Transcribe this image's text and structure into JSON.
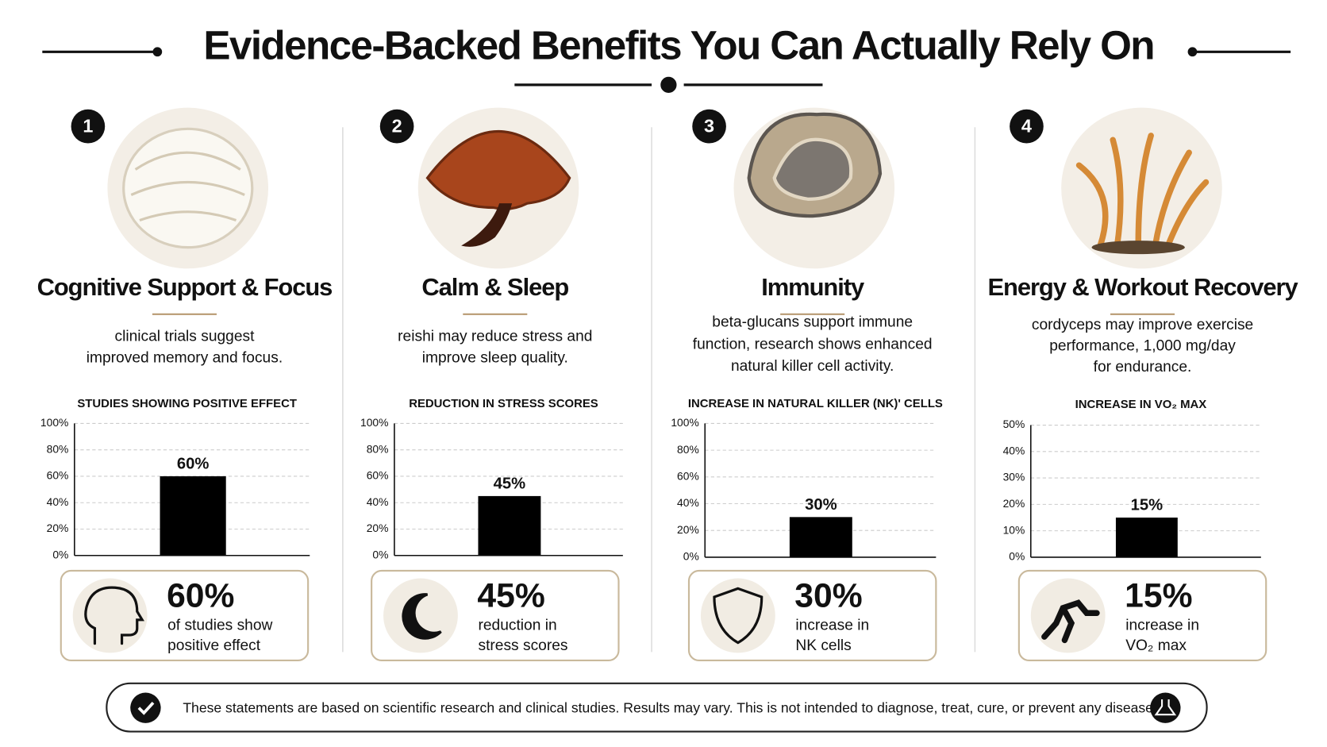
{
  "title": "Evidence-Backed Benefits You Can Actually Rely On",
  "panels": [
    {
      "number": "1",
      "heading": "Cognitive Support & Focus",
      "description": [
        "clinical trials suggest",
        "improved memory and focus."
      ],
      "stat": "60%",
      "stat_text": [
        "of studies show",
        "positive effect"
      ]
    },
    {
      "number": "2",
      "heading": "Calm & Sleep",
      "description": [
        "reishi may reduce stress and",
        "improve sleep quality."
      ],
      "stat": "45%",
      "stat_text": [
        "reduction in",
        "stress scores"
      ]
    },
    {
      "number": "3",
      "heading": "Immunity",
      "description": [
        "beta-glucans support immune",
        "function, research shows enhanced",
        "natural killer cell activity."
      ],
      "stat": "30%",
      "stat_text": [
        "increase in",
        "NK cells"
      ]
    },
    {
      "number": "4",
      "heading": "Energy & Workout Recovery",
      "description": [
        "cordyceps may improve exercise",
        "performance, 1,000 mg/day",
        "for endurance."
      ],
      "stat": "15%",
      "stat_text": [
        "increase in",
        "VO₂ max"
      ]
    }
  ],
  "disclaimer": "These statements are based on scientific research and clinical studies. Results may vary. This is not intended to diagnose, treat, cure, or prevent any disease.",
  "chart_data": [
    {
      "type": "bar",
      "title": "STUDIES SHOWING POSITIVE EFFECT",
      "categories": [
        null
      ],
      "values": [
        60
      ],
      "value_labels": [
        "60%"
      ],
      "color": "#000000",
      "ylim": [
        0,
        100
      ],
      "yticks": [
        {
          "value": 0,
          "label": "0%"
        },
        {
          "value": 20,
          "label": "20%"
        },
        {
          "value": 40,
          "label": "40%"
        },
        {
          "value": 60,
          "label": "60%"
        },
        {
          "value": 80,
          "label": "80%"
        },
        {
          "value": 100,
          "label": "100%"
        }
      ],
      "grid": true
    },
    {
      "type": "bar",
      "title": "REDUCTION IN STRESS SCORES",
      "categories": [
        null
      ],
      "values": [
        45
      ],
      "value_labels": [
        "45%"
      ],
      "color": "#000000",
      "ylim": [
        0,
        100
      ],
      "yticks": [
        {
          "value": 0,
          "label": "0%"
        },
        {
          "value": 20,
          "label": "20%"
        },
        {
          "value": 40,
          "label": "40%"
        },
        {
          "value": 60,
          "label": "60%"
        },
        {
          "value": 80,
          "label": "80%"
        },
        {
          "value": 100,
          "label": "100%"
        }
      ],
      "grid": true
    },
    {
      "type": "bar",
      "title": "INCREASE IN NATURAL KILLER (NK)' CELLS",
      "categories": [
        null
      ],
      "values": [
        30
      ],
      "value_labels": [
        "30%"
      ],
      "color": "#000000",
      "ylim": [
        0,
        100
      ],
      "yticks": [
        {
          "value": 0,
          "label": "0%"
        },
        {
          "value": 20,
          "label": "20%"
        },
        {
          "value": 40,
          "label": "40%"
        },
        {
          "value": 60,
          "label": "60%"
        },
        {
          "value": 80,
          "label": "80%"
        },
        {
          "value": 100,
          "label": "100%"
        }
      ],
      "grid": true
    },
    {
      "type": "bar",
      "title": "INCREASE IN VO₂ MAX",
      "categories": [
        null
      ],
      "values": [
        15
      ],
      "value_labels": [
        "15%"
      ],
      "color": "#000000",
      "ylim": [
        0,
        50
      ],
      "yticks": [
        {
          "value": 0,
          "label": "0%"
        },
        {
          "value": 10,
          "label": "10%"
        },
        {
          "value": 20,
          "label": "20%"
        },
        {
          "value": 30,
          "label": "30%"
        },
        {
          "value": 40,
          "label": "40%"
        },
        {
          "value": 50,
          "label": "50%"
        }
      ],
      "grid": true
    }
  ]
}
